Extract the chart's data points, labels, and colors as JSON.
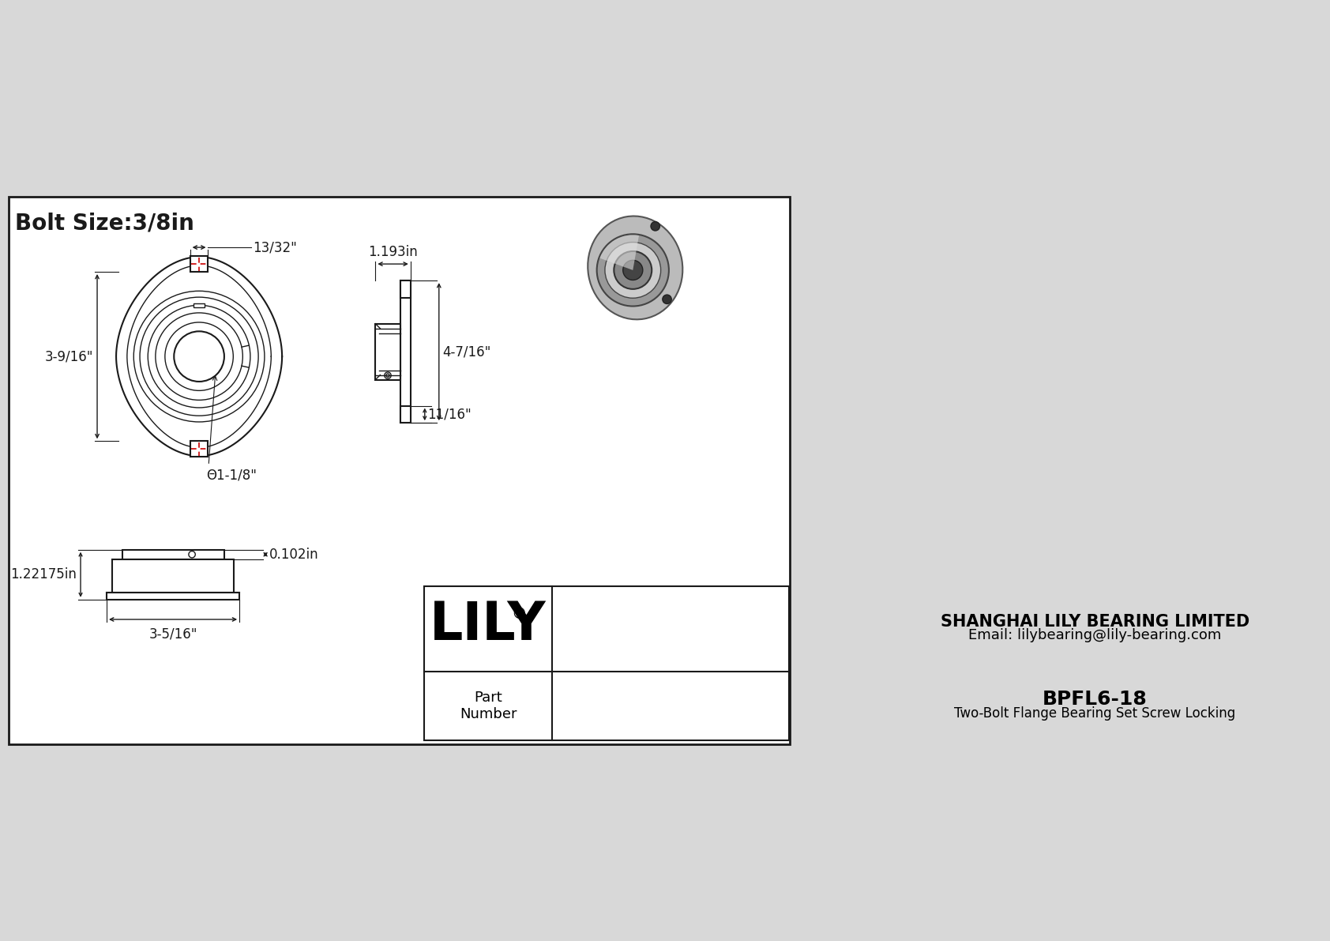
{
  "title": "Bolt Size:3/8in",
  "background_color": "#d8d8d8",
  "drawing_bg": "#ffffff",
  "line_color": "#1a1a1a",
  "dim_color": "#1a1a1a",
  "red_dash_color": "#cc0000",
  "company_name": "SHANGHAI LILY BEARING LIMITED",
  "company_email": "Email: lilybearing@lily-bearing.com",
  "brand": "LILY",
  "brand_registered": "®",
  "part_number": "BPFL6-18",
  "part_description": "Two-Bolt Flange Bearing Set Screw Locking",
  "dim_13_32": "13/32\"",
  "dim_3_9_16": "3-9/16\"",
  "dim_1_1_8": "Θ1-1/8\"",
  "dim_1_193": "1.193in",
  "dim_4_7_16": "4-7/16\"",
  "dim_11_16": "11/16\"",
  "dim_0_102": "0.102in",
  "dim_1_22175": "1.22175in",
  "dim_3_5_16": "3-5/16\""
}
